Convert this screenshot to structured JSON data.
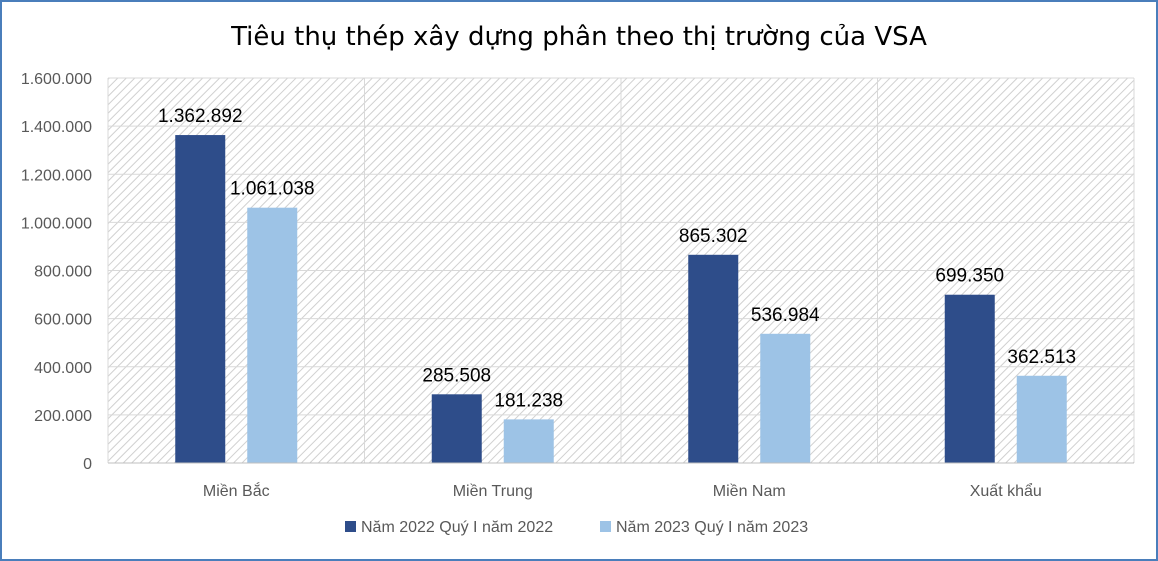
{
  "chart_data": {
    "type": "bar",
    "title": "Tiêu thụ thép xây dựng phân theo thị trường của VSA",
    "categories": [
      "Miền Bắc",
      "Miền Trung",
      "Miền Nam",
      "Xuất khẩu"
    ],
    "series": [
      {
        "name": "Năm 2022 Quý I năm 2022",
        "values": [
          1362892,
          285508,
          865302,
          699350
        ],
        "labels": [
          "1.362.892",
          "285.508",
          "865.302",
          "699.350"
        ],
        "color": "#2e4d8a"
      },
      {
        "name": "Năm 2023 Quý I năm 2023",
        "values": [
          1061038,
          181238,
          536984,
          362513
        ],
        "labels": [
          "1.061.038",
          "181.238",
          "536.984",
          "362.513"
        ],
        "color": "#9dc3e6"
      }
    ],
    "ylim": [
      0,
      1600000
    ],
    "yticks": [
      0,
      200000,
      400000,
      600000,
      800000,
      1000000,
      1200000,
      1400000,
      1600000
    ],
    "ytick_labels": [
      "0",
      "200.000",
      "400.000",
      "600.000",
      "800.000",
      "1.000.000",
      "1.200.000",
      "1.400.000",
      "1.600.000"
    ],
    "xlabel": "",
    "ylabel": "",
    "grid": true,
    "legend_position": "bottom"
  }
}
